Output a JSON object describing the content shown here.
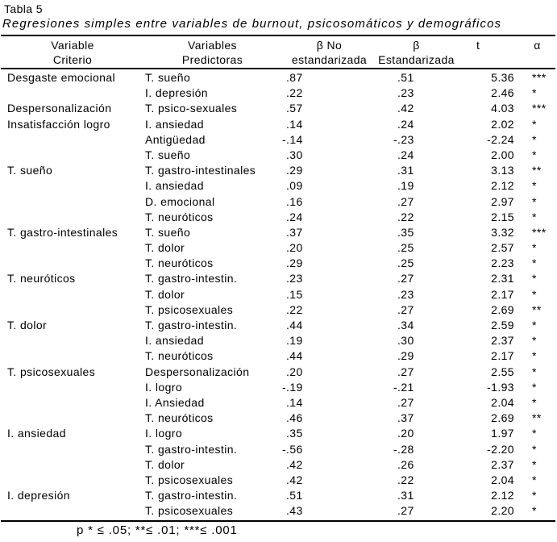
{
  "title": "Tabla 5",
  "subtitle": "Regresiones simples entre variables de burnout, psicosomáticos y demográficos",
  "table": {
    "columns": [
      {
        "line1": "Variable",
        "line2": "Criterio"
      },
      {
        "line1": "Variables",
        "line2": "Predictoras"
      },
      {
        "line1": "β No",
        "line2": "estandarizada"
      },
      {
        "line1": "β",
        "line2": "Estandarizada"
      },
      {
        "line1": "t",
        "line2": ""
      },
      {
        "line1": "α",
        "line2": ""
      }
    ],
    "rows": [
      [
        "Desgaste emocional",
        "T. sueño",
        ".87",
        ".51",
        "5.36",
        "***"
      ],
      [
        "",
        "I. depresión",
        ".22",
        ".23",
        "2.46",
        "*"
      ],
      [
        "Despersonalización",
        "T. psico-sexuales",
        ".57",
        ".42",
        "4.03",
        "***"
      ],
      [
        "Insatisfacción logro",
        "I. ansiedad",
        ".14",
        ".24",
        "2.02",
        "*"
      ],
      [
        "",
        "Antigüedad",
        "-.14",
        "-.23",
        "-2.24",
        "*"
      ],
      [
        "",
        "T. sueño",
        ".30",
        ".24",
        "2.00",
        "*"
      ],
      [
        "T. sueño",
        "T. gastro-intestinales",
        ".29",
        ".31",
        "3.13",
        "**"
      ],
      [
        "",
        "I. ansiedad",
        ".09",
        ".19",
        "2.12",
        "*"
      ],
      [
        "",
        "D. emocional",
        ".16",
        ".27",
        "2.97",
        "*"
      ],
      [
        "",
        "T. neuróticos",
        ".24",
        ".22",
        "2.15",
        "*"
      ],
      [
        "T. gastro-intestinales",
        "T. sueño",
        ".37",
        ".35",
        "3.32",
        "***"
      ],
      [
        "",
        "T. dolor",
        ".20",
        ".25",
        "2.57",
        "*"
      ],
      [
        "",
        "T. neuróticos",
        ".29",
        ".25",
        "2.23",
        "*"
      ],
      [
        "T. neuróticos",
        "T. gastro-intestin.",
        ".23",
        ".27",
        "2.31",
        "*"
      ],
      [
        "",
        "T. dolor",
        ".15",
        ".23",
        "2.17",
        "*"
      ],
      [
        "",
        "T. psicosexuales",
        ".22",
        ".27",
        "2.69",
        "**"
      ],
      [
        "T. dolor",
        "T. gastro-intestin.",
        ".44",
        ".34",
        "2.59",
        "*"
      ],
      [
        "",
        "I. ansiedad",
        ".19",
        ".30",
        "2.37",
        "*"
      ],
      [
        "",
        "T. neuróticos",
        ".44",
        ".29",
        "2.17",
        "*"
      ],
      [
        "T. psicosexuales",
        "Despersonalización",
        ".20",
        ".27",
        "2.55",
        "*"
      ],
      [
        "",
        "I. logro",
        "-.19",
        "-.21",
        "-1.93",
        "*"
      ],
      [
        "",
        "I. Ansiedad",
        ".14",
        ".27",
        "2.04",
        "*"
      ],
      [
        "",
        "T. neuróticos",
        ".46",
        ".37",
        "2.69",
        "**"
      ],
      [
        "I. ansiedad",
        "I. logro",
        ".35",
        ".20",
        "1.97",
        "*"
      ],
      [
        "",
        "T. gastro-intestin.",
        "-.56",
        "-.28",
        "-2.20",
        "*"
      ],
      [
        "",
        "T. dolor",
        ".42",
        ".26",
        "2.37",
        "*"
      ],
      [
        "",
        "T. psicosexuales",
        ".42",
        ".22",
        "2.04",
        "*"
      ],
      [
        "I. depresión",
        "T. gastro-intestin.",
        ".51",
        ".31",
        "2.12",
        "*"
      ],
      [
        "",
        "T. psicosexuales",
        ".43",
        ".27",
        "2.20",
        "*"
      ]
    ]
  },
  "footnote": "p * ≤ .05; **≤ .01; ***≤ .001"
}
